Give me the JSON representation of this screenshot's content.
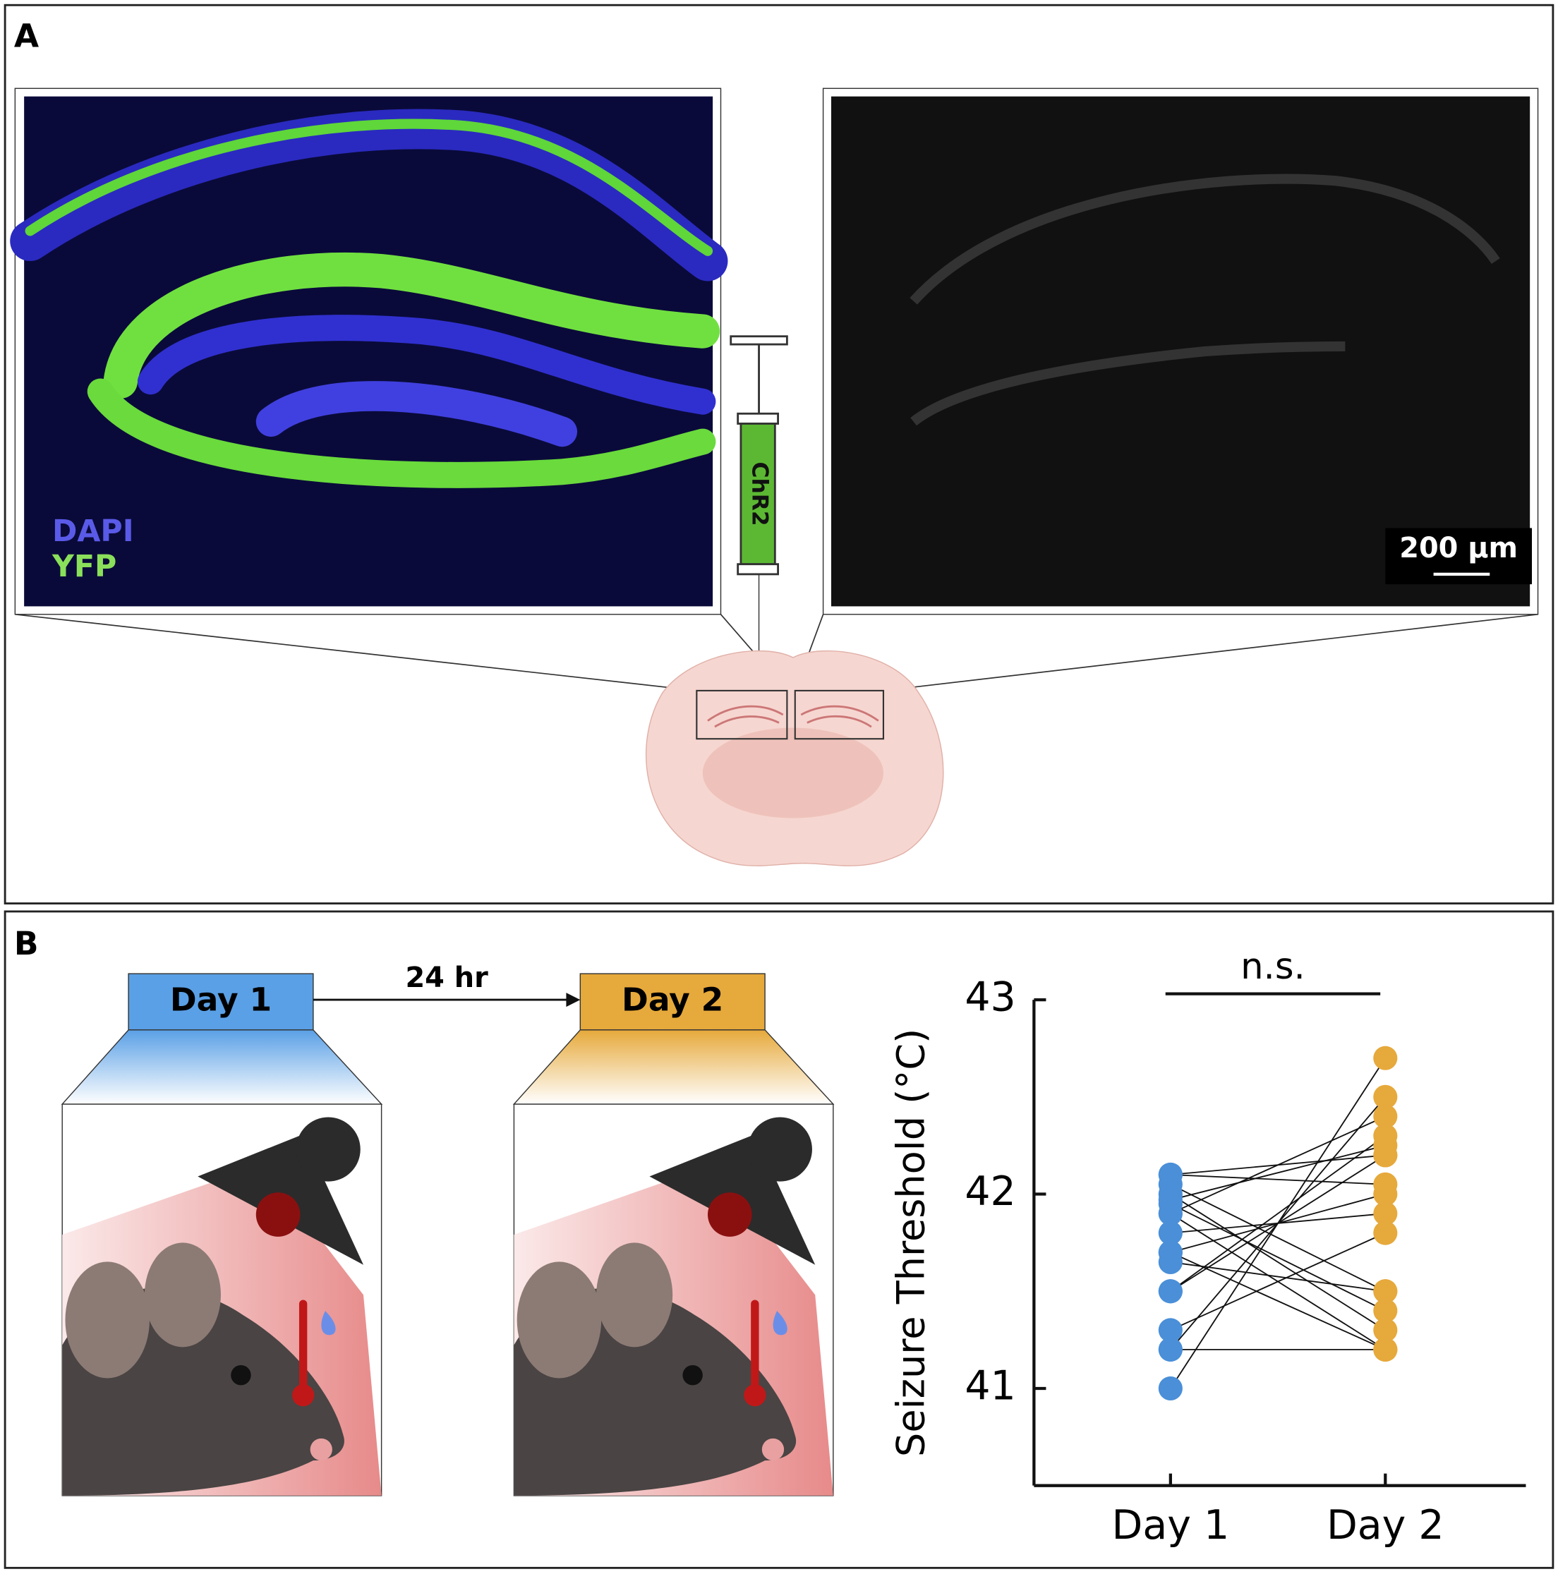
{
  "panel_a": {
    "label": "A",
    "stain_labels": [
      "DAPI",
      "YFP"
    ],
    "syringe_label": "ChR2",
    "scale_bar": "200 µm"
  },
  "panel_b": {
    "label": "B",
    "timeline": {
      "day1": "Day 1",
      "interval": "24 hr",
      "day2": "Day 2"
    }
  },
  "chart_data": {
    "type": "paired_scatter",
    "y_label": "Seizure Threshold (°C)",
    "annotation": "n.s.",
    "categories": [
      "Day 1",
      "Day 2"
    ],
    "colors": [
      "#4a8fd8",
      "#e6a93b"
    ],
    "values": [
      [
        42.1,
        42.1,
        42.05,
        42.0,
        41.97,
        41.95,
        41.9,
        41.9,
        41.8,
        41.7,
        41.7,
        41.65,
        41.5,
        41.5,
        41.3,
        41.2,
        41.2,
        41.0
      ],
      [
        42.05,
        42.2,
        41.5,
        41.3,
        42.25,
        41.4,
        42.4,
        41.2,
        41.9,
        42.0,
        41.2,
        41.5,
        42.2,
        42.3,
        41.8,
        42.5,
        41.2,
        42.7
      ]
    ],
    "ylim": [
      40.5,
      43
    ],
    "yticks": [
      41,
      42,
      43
    ],
    "grid": false
  }
}
